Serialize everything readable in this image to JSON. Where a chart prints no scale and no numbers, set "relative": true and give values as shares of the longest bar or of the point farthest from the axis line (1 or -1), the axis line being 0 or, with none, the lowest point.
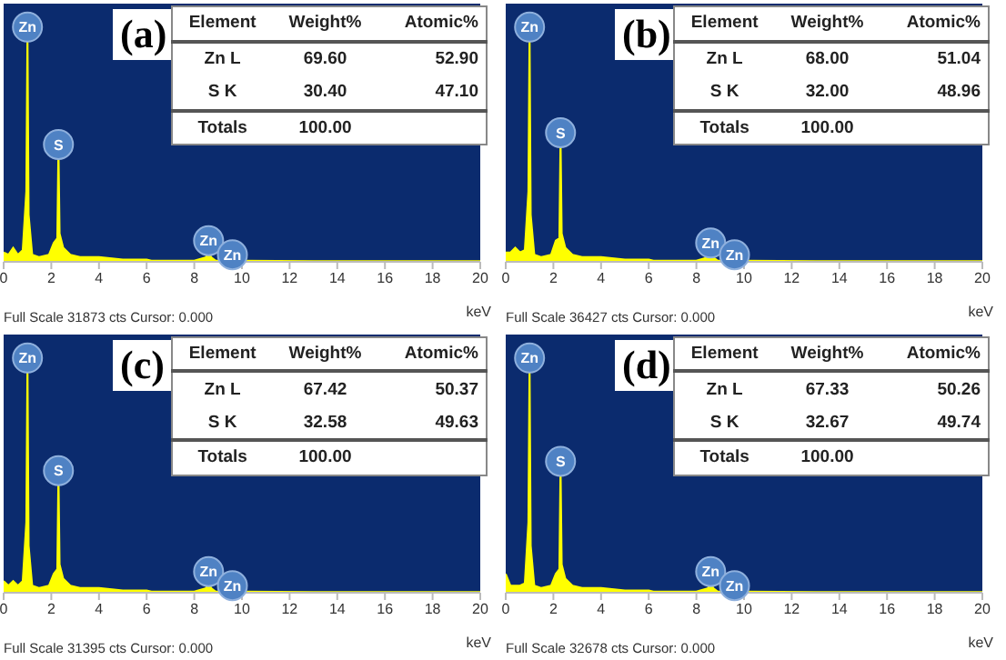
{
  "chart_data": [
    {
      "type": "area",
      "title": "(a)",
      "xlabel": "keV",
      "relative": true,
      "grid": false,
      "xlim": [
        0,
        20
      ],
      "xticks": [
        0,
        2,
        4,
        6,
        8,
        10,
        12,
        14,
        16,
        18,
        20
      ],
      "x": [
        0,
        0.2,
        0.4,
        0.6,
        0.8,
        0.95,
        1.0,
        1.05,
        1.2,
        1.5,
        1.9,
        2.1,
        2.25,
        2.3,
        2.35,
        2.5,
        2.8,
        3.2,
        4,
        5,
        6,
        6.2,
        8.0,
        8.5,
        8.6,
        8.7,
        8.9,
        9.5,
        9.6,
        9.7,
        10,
        13,
        16,
        20
      ],
      "series": [
        {
          "color": "#ffff00",
          "values": [
            0.04,
            0.03,
            0.06,
            0.03,
            0.05,
            0.3,
            1,
            0.2,
            0.03,
            0.02,
            0.03,
            0.08,
            0.1,
            0.5,
            0.12,
            0.06,
            0.03,
            0.02,
            0.02,
            0.01,
            0.01,
            0.005,
            0.005,
            0.02,
            0.09,
            0.02,
            0.005,
            0.005,
            0.03,
            0.005,
            0.005,
            0.003,
            0.003,
            0.003
          ]
        }
      ],
      "annotations": [
        "Full Scale 31873 cts Cursor: 0.000",
        "Element",
        "Weight%",
        "Atomic%",
        "Zn L",
        "69.60",
        "52.90",
        "S K",
        "30.40",
        "47.10",
        "Totals",
        "100.00",
        {
          "text": "Zn",
          "x": 1.0,
          "y": 1
        },
        {
          "text": "S",
          "x": 2.3,
          "y": 0.5
        },
        {
          "text": "Zn",
          "x": 8.6,
          "y": 0.09
        },
        {
          "text": "Zn",
          "x": 9.6,
          "y": 0.03
        }
      ]
    },
    {
      "type": "area",
      "title": "(b)",
      "xlabel": "keV",
      "relative": true,
      "grid": false,
      "xlim": [
        0,
        20
      ],
      "xticks": [
        0,
        2,
        4,
        6,
        8,
        10,
        12,
        14,
        16,
        18,
        20
      ],
      "x": [
        0,
        0.2,
        0.4,
        0.6,
        0.8,
        0.95,
        1.0,
        1.05,
        1.2,
        1.5,
        1.9,
        2.1,
        2.25,
        2.3,
        2.35,
        2.5,
        2.8,
        3.2,
        4,
        5,
        6,
        6.2,
        8.0,
        8.5,
        8.6,
        8.7,
        8.9,
        9.5,
        9.6,
        9.7,
        10,
        13,
        16,
        20
      ],
      "series": [
        {
          "color": "#ffff00",
          "values": [
            0.04,
            0.04,
            0.06,
            0.04,
            0.05,
            0.3,
            1,
            0.2,
            0.03,
            0.02,
            0.03,
            0.09,
            0.1,
            0.55,
            0.12,
            0.06,
            0.03,
            0.02,
            0.02,
            0.01,
            0.01,
            0.005,
            0.005,
            0.02,
            0.08,
            0.02,
            0.005,
            0.005,
            0.03,
            0.005,
            0.005,
            0.003,
            0.003,
            0.003
          ]
        }
      ],
      "annotations": [
        "Full Scale 36427 cts Cursor: 0.000",
        "Element",
        "Weight%",
        "Atomic%",
        "Zn L",
        "68.00",
        "51.04",
        "S K",
        "32.00",
        "48.96",
        "Totals",
        "100.00",
        {
          "text": "Zn",
          "x": 1.0,
          "y": 1
        },
        {
          "text": "S",
          "x": 2.3,
          "y": 0.55
        },
        {
          "text": "Zn",
          "x": 8.6,
          "y": 0.08
        },
        {
          "text": "Zn",
          "x": 9.6,
          "y": 0.03
        }
      ]
    },
    {
      "type": "area",
      "title": "(c)",
      "xlabel": "keV",
      "relative": true,
      "grid": false,
      "xlim": [
        0,
        20
      ],
      "xticks": [
        0,
        2,
        4,
        6,
        8,
        10,
        12,
        14,
        16,
        18,
        20
      ],
      "x": [
        0,
        0.2,
        0.4,
        0.6,
        0.8,
        0.95,
        1.0,
        1.05,
        1.2,
        1.5,
        1.9,
        2.1,
        2.25,
        2.3,
        2.35,
        2.5,
        2.8,
        3.2,
        4,
        5,
        6,
        6.2,
        8.0,
        8.5,
        8.6,
        8.7,
        8.9,
        9.5,
        9.6,
        9.7,
        10,
        13,
        16,
        20
      ],
      "series": [
        {
          "color": "#ffff00",
          "values": [
            0.05,
            0.03,
            0.05,
            0.03,
            0.05,
            0.3,
            1,
            0.2,
            0.03,
            0.02,
            0.03,
            0.08,
            0.1,
            0.52,
            0.12,
            0.06,
            0.03,
            0.02,
            0.02,
            0.01,
            0.01,
            0.005,
            0.005,
            0.02,
            0.09,
            0.02,
            0.005,
            0.005,
            0.03,
            0.005,
            0.005,
            0.003,
            0.003,
            0.003
          ]
        }
      ],
      "annotations": [
        "Full Scale 31395 cts Cursor: 0.000",
        "Element",
        "Weight%",
        "Atomic%",
        "Zn L",
        "67.42",
        "50.37",
        "S K",
        "32.58",
        "49.63",
        "Totals",
        "100.00",
        {
          "text": "Zn",
          "x": 1.0,
          "y": 1
        },
        {
          "text": "S",
          "x": 2.3,
          "y": 0.52
        },
        {
          "text": "Zn",
          "x": 8.6,
          "y": 0.09
        },
        {
          "text": "Zn",
          "x": 9.6,
          "y": 0.03
        }
      ]
    },
    {
      "type": "area",
      "title": "(d)",
      "xlabel": "keV",
      "relative": true,
      "grid": false,
      "xlim": [
        0,
        20
      ],
      "xticks": [
        0,
        2,
        4,
        6,
        8,
        10,
        12,
        14,
        16,
        18,
        20
      ],
      "x": [
        0,
        0.2,
        0.4,
        0.6,
        0.8,
        0.95,
        1.0,
        1.05,
        1.2,
        1.5,
        1.9,
        2.1,
        2.25,
        2.3,
        2.35,
        2.5,
        2.8,
        3.2,
        4,
        5,
        6,
        6.2,
        8.0,
        8.5,
        8.6,
        8.7,
        8.9,
        9.5,
        9.6,
        9.7,
        10,
        13,
        16,
        20
      ],
      "series": [
        {
          "color": "#ffff00",
          "values": [
            0.08,
            0.03,
            0.03,
            0.03,
            0.04,
            0.3,
            1,
            0.2,
            0.03,
            0.02,
            0.03,
            0.08,
            0.1,
            0.56,
            0.12,
            0.06,
            0.03,
            0.02,
            0.02,
            0.01,
            0.01,
            0.005,
            0.005,
            0.02,
            0.09,
            0.02,
            0.005,
            0.005,
            0.03,
            0.005,
            0.005,
            0.003,
            0.003,
            0.003
          ]
        }
      ],
      "annotations": [
        "Full Scale 32678 cts Cursor: 0.000",
        "Element",
        "Weight%",
        "Atomic%",
        "Zn L",
        "67.33",
        "50.26",
        "S K",
        "32.67",
        "49.74",
        "Totals",
        "100.00",
        {
          "text": "Zn",
          "x": 1.0,
          "y": 1
        },
        {
          "text": "S",
          "x": 2.3,
          "y": 0.56
        },
        {
          "text": "Zn",
          "x": 8.6,
          "y": 0.09
        },
        {
          "text": "Zn",
          "x": 9.6,
          "y": 0.03
        }
      ]
    }
  ]
}
